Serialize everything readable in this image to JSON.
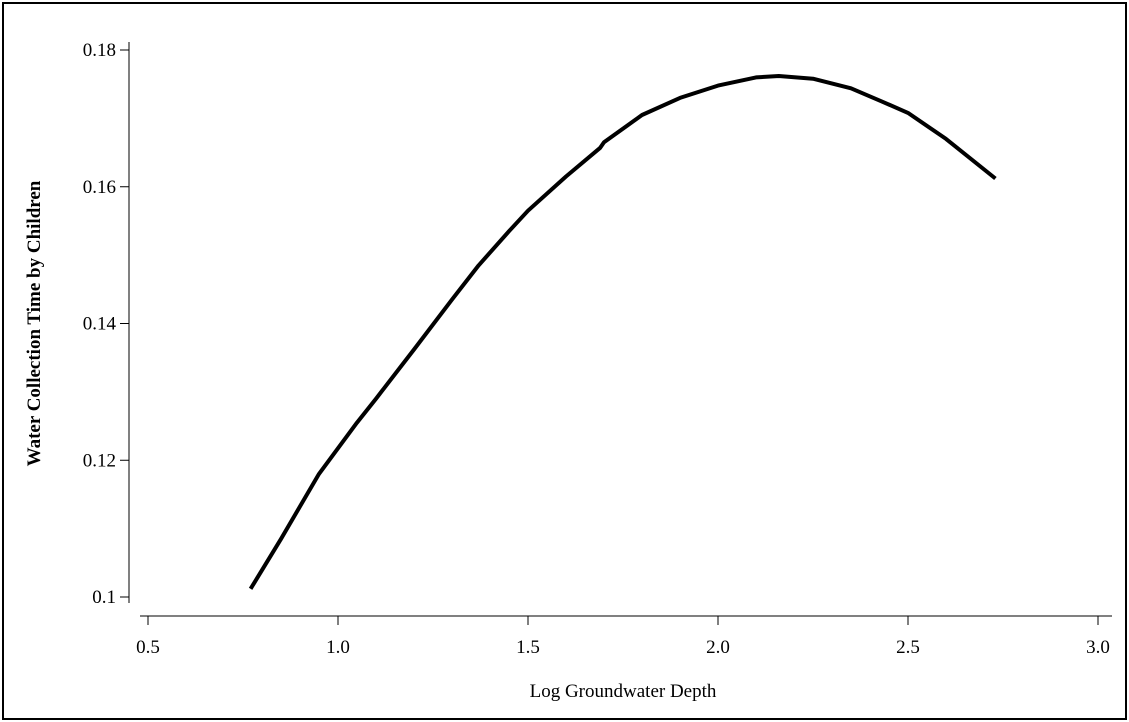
{
  "chart_data": {
    "type": "line",
    "title": "",
    "xlabel": "Log Groundwater Depth",
    "ylabel": "Water Collection  Time by Children",
    "xlim": [
      0.5,
      3.0
    ],
    "ylim": [
      0.1,
      0.18
    ],
    "xticks": [
      "0.5",
      "1.0",
      "1.5",
      "2.0",
      "2.5",
      "3.0"
    ],
    "yticks": [
      "0.1",
      "0.12",
      "0.14",
      "0.16",
      "0.18"
    ],
    "grid": false,
    "series": [
      {
        "line_color": "#000000",
        "x": [
          0.77,
          0.85,
          0.95,
          1.05,
          1.1,
          1.2,
          1.3,
          1.37,
          1.45,
          1.5,
          1.6,
          1.69,
          1.7,
          1.8,
          1.9,
          2.0,
          2.1,
          2.16,
          2.25,
          2.35,
          2.43,
          2.5,
          2.6,
          2.73
        ],
        "y": [
          0.1012,
          0.1085,
          0.118,
          0.1255,
          0.129,
          0.1362,
          0.1435,
          0.1485,
          0.1535,
          0.1565,
          0.1615,
          0.1657,
          0.1665,
          0.1705,
          0.173,
          0.1748,
          0.176,
          0.1762,
          0.1758,
          0.1744,
          0.1725,
          0.1708,
          0.167,
          0.1612
        ]
      }
    ]
  }
}
